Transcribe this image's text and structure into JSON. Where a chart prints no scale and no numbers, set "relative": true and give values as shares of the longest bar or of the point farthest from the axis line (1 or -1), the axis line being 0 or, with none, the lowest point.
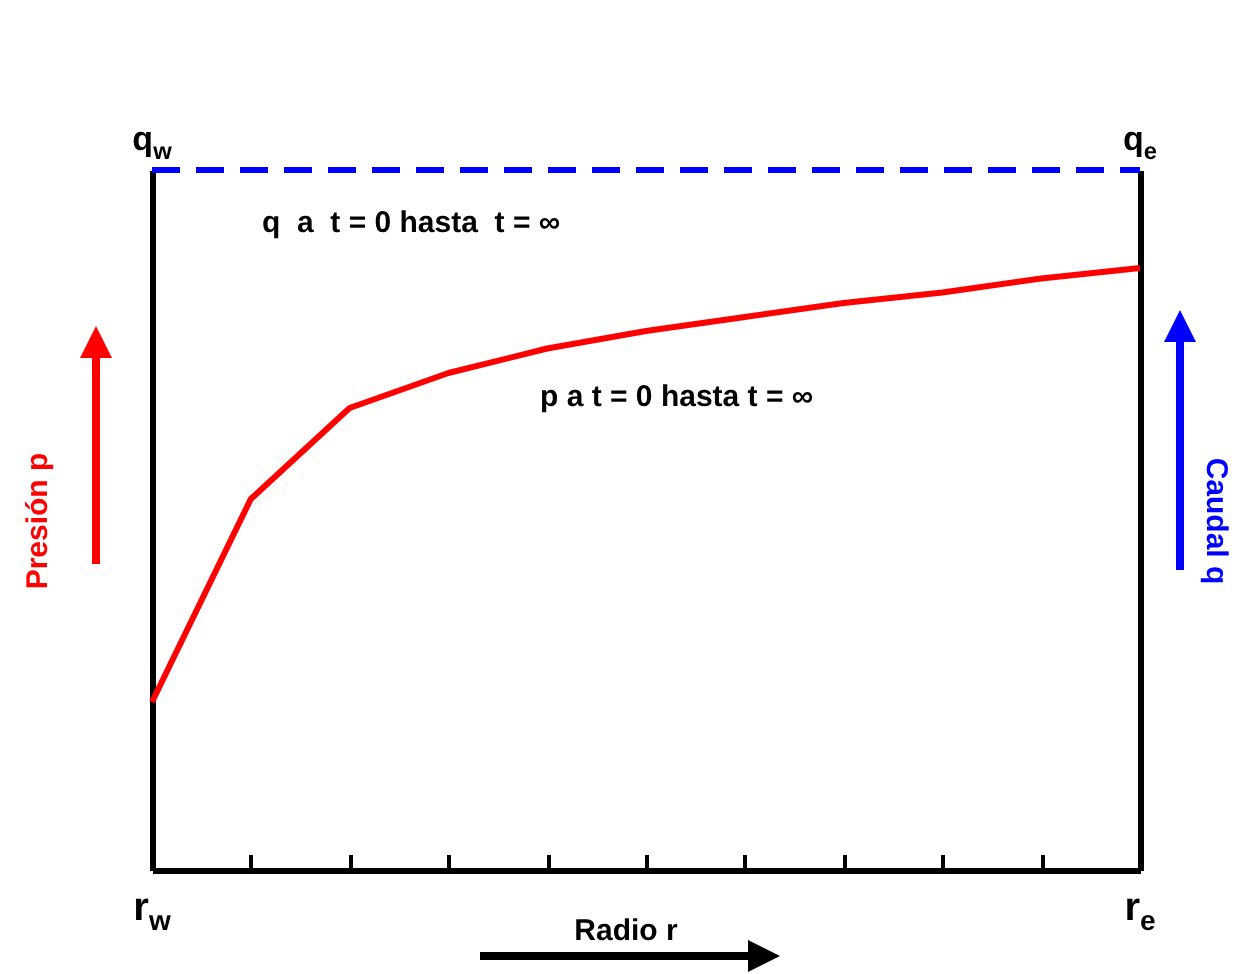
{
  "chart_data": {
    "type": "line",
    "relative": true,
    "xlabel": "Radio r",
    "ylabel": "Presión p",
    "y2label": "Caudal q",
    "categories": [
      "r$_{w}$",
      null,
      null,
      null,
      null,
      null,
      null,
      null,
      null,
      null,
      "r$_{e}$"
    ],
    "series": [
      {
        "color": "#ff0000",
        "line_style": "solid",
        "values": [
          0.24,
          0.53,
          0.66,
          0.71,
          0.745,
          0.77,
          0.79,
          0.81,
          0.825,
          0.845,
          0.86
        ]
      },
      {
        "color": "#0000ff",
        "line_style": "dashed",
        "values": [
          1,
          1,
          1,
          1,
          1,
          1,
          1,
          1,
          1,
          1,
          1
        ]
      }
    ],
    "annotations": [
      {
        "text": "q$_{w}$",
        "x": "r$_{w}$",
        "y": 1
      },
      {
        "text": "q$_{e}$",
        "x": "r$_{e}$",
        "y": 1
      },
      "q  a  t = 0 hasta  t = ∞",
      "p a t = 0 hasta t = ∞"
    ]
  }
}
